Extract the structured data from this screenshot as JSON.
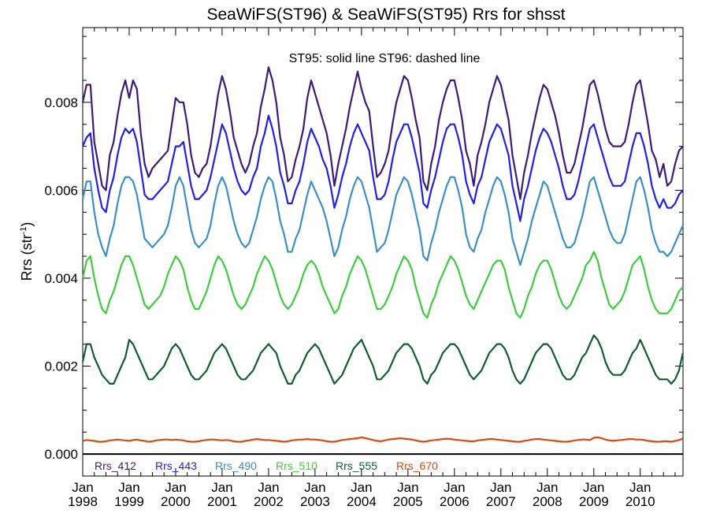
{
  "chart_data": {
    "type": "line",
    "title": "SeaWiFS(ST96) & SeaWiFS(ST95)  Rrs for shsst",
    "ylabel": "Rrs (str",
    "ylabel_sup": "-1",
    "ylabel_close": ")",
    "annotation": "ST95: solid line   ST96: dashed line",
    "ylim": [
      -0.0005,
      0.0097
    ],
    "xlim": [
      1998.0,
      2010.92
    ],
    "y_ticks": [
      0.0,
      0.002,
      0.004,
      0.006,
      0.008
    ],
    "y_tick_labels": [
      "0.000",
      "0.002",
      "0.004",
      "0.006",
      "0.008"
    ],
    "x_ticks": [
      {
        "month": "Jan",
        "year": "1998",
        "x": 1998
      },
      {
        "month": "Jan",
        "year": "1999",
        "x": 1999
      },
      {
        "month": "Jan",
        "year": "2000",
        "x": 2000
      },
      {
        "month": "Jan",
        "year": "2001",
        "x": 2001
      },
      {
        "month": "Jan",
        "year": "2002",
        "x": 2002
      },
      {
        "month": "Jan",
        "year": "2003",
        "x": 2003
      },
      {
        "month": "Jan",
        "year": "2004",
        "x": 2004
      },
      {
        "month": "Jan",
        "year": "2005",
        "x": 2005
      },
      {
        "month": "Jan",
        "year": "2006",
        "x": 2006
      },
      {
        "month": "Jan",
        "year": "2007",
        "x": 2007
      },
      {
        "month": "Jan",
        "year": "2008",
        "x": 2008
      },
      {
        "month": "Jan",
        "year": "2009",
        "x": 2009
      },
      {
        "month": "Jan",
        "year": "2010",
        "x": 2010
      }
    ],
    "x_minor_per_major": 4,
    "y_minor_per_major": 4,
    "grid": false,
    "legend_position": "bottom-left",
    "time_start": "1998-01",
    "time_step": "monthly",
    "series": [
      {
        "name": "Rrs_412",
        "color": "#3c1a78",
        "values": [
          0.008,
          0.0084,
          0.0084,
          0.0071,
          0.0066,
          0.0061,
          0.006,
          0.0068,
          0.0071,
          0.0077,
          0.0082,
          0.0085,
          0.0081,
          0.0085,
          0.0083,
          0.0073,
          0.0066,
          0.0063,
          0.0065,
          0.0066,
          0.0067,
          0.0068,
          0.0069,
          0.0075,
          0.0081,
          0.008,
          0.008,
          0.0075,
          0.0068,
          0.0064,
          0.0063,
          0.0065,
          0.0066,
          0.007,
          0.0076,
          0.0082,
          0.0086,
          0.0083,
          0.0078,
          0.0072,
          0.0069,
          0.0066,
          0.0064,
          0.0066,
          0.007,
          0.0073,
          0.0079,
          0.0083,
          0.0088,
          0.0085,
          0.008,
          0.0072,
          0.0068,
          0.0062,
          0.0063,
          0.0067,
          0.007,
          0.0074,
          0.0081,
          0.0085,
          0.0082,
          0.0079,
          0.0076,
          0.0073,
          0.0068,
          0.0061,
          0.0066,
          0.007,
          0.0074,
          0.0079,
          0.0083,
          0.0087,
          0.0083,
          0.008,
          0.0078,
          0.007,
          0.0063,
          0.0064,
          0.0066,
          0.0069,
          0.0075,
          0.008,
          0.0083,
          0.0086,
          0.0085,
          0.0081,
          0.0076,
          0.0072,
          0.0062,
          0.006,
          0.0066,
          0.007,
          0.0076,
          0.008,
          0.0083,
          0.0085,
          0.0085,
          0.0081,
          0.0076,
          0.0069,
          0.0066,
          0.0061,
          0.0068,
          0.0071,
          0.0075,
          0.008,
          0.0083,
          0.0086,
          0.0084,
          0.008,
          0.0076,
          0.0068,
          0.0063,
          0.0058,
          0.0064,
          0.0068,
          0.0073,
          0.0077,
          0.0081,
          0.0084,
          0.0083,
          0.008,
          0.0077,
          0.0073,
          0.0068,
          0.0064,
          0.0064,
          0.0066,
          0.007,
          0.0074,
          0.0079,
          0.0084,
          0.0085,
          0.0082,
          0.0078,
          0.0074,
          0.0071,
          0.007,
          0.007,
          0.007,
          0.0071,
          0.0075,
          0.008,
          0.0084,
          0.0085,
          0.008,
          0.0075,
          0.0069,
          0.0067,
          0.0063,
          0.0066,
          0.0061,
          0.0062,
          0.0066,
          0.0069,
          0.007
        ]
      },
      {
        "name": "Rrs_443",
        "color": "#1f1fe6",
        "values": [
          0.007,
          0.0072,
          0.0073,
          0.0065,
          0.006,
          0.0056,
          0.0055,
          0.006,
          0.0063,
          0.0068,
          0.0072,
          0.0074,
          0.0073,
          0.0074,
          0.0071,
          0.0065,
          0.0059,
          0.0058,
          0.0058,
          0.0059,
          0.006,
          0.0061,
          0.0062,
          0.0066,
          0.007,
          0.007,
          0.0071,
          0.0066,
          0.0061,
          0.0058,
          0.0058,
          0.0059,
          0.006,
          0.0063,
          0.0067,
          0.0071,
          0.0075,
          0.0073,
          0.0069,
          0.0065,
          0.0062,
          0.006,
          0.0059,
          0.006,
          0.0063,
          0.0065,
          0.007,
          0.0073,
          0.0077,
          0.0074,
          0.007,
          0.0064,
          0.0061,
          0.0057,
          0.0057,
          0.006,
          0.0062,
          0.0066,
          0.0071,
          0.0074,
          0.0072,
          0.007,
          0.0067,
          0.0065,
          0.0061,
          0.0056,
          0.0059,
          0.0063,
          0.0066,
          0.007,
          0.0073,
          0.0075,
          0.0073,
          0.0071,
          0.0069,
          0.0063,
          0.0058,
          0.0058,
          0.0059,
          0.0062,
          0.0067,
          0.0071,
          0.0073,
          0.0075,
          0.0075,
          0.0072,
          0.0068,
          0.0064,
          0.0057,
          0.0056,
          0.006,
          0.0063,
          0.0067,
          0.0071,
          0.0074,
          0.0075,
          0.0075,
          0.0072,
          0.0068,
          0.0062,
          0.0059,
          0.0057,
          0.0061,
          0.0063,
          0.0067,
          0.0071,
          0.0073,
          0.0075,
          0.0074,
          0.0071,
          0.0068,
          0.0061,
          0.0057,
          0.0053,
          0.0058,
          0.0061,
          0.0065,
          0.0069,
          0.0072,
          0.0074,
          0.0073,
          0.0071,
          0.0068,
          0.0065,
          0.0061,
          0.0058,
          0.0058,
          0.0059,
          0.0062,
          0.0066,
          0.007,
          0.0074,
          0.0075,
          0.0072,
          0.0069,
          0.0066,
          0.0063,
          0.0061,
          0.0061,
          0.0061,
          0.0062,
          0.0066,
          0.007,
          0.0073,
          0.0073,
          0.007,
          0.0066,
          0.0061,
          0.0058,
          0.0056,
          0.0058,
          0.0056,
          0.0056,
          0.0057,
          0.0059,
          0.006
        ]
      },
      {
        "name": "Rrs_490",
        "color": "#3a8fc4",
        "values": [
          0.0058,
          0.0062,
          0.0062,
          0.0055,
          0.005,
          0.0047,
          0.0045,
          0.0049,
          0.0052,
          0.0057,
          0.0061,
          0.0063,
          0.0063,
          0.0062,
          0.0059,
          0.0054,
          0.0049,
          0.0048,
          0.0047,
          0.0048,
          0.0049,
          0.005,
          0.0052,
          0.0056,
          0.0061,
          0.0063,
          0.0061,
          0.0056,
          0.0051,
          0.0048,
          0.0047,
          0.0048,
          0.0049,
          0.0052,
          0.0057,
          0.0061,
          0.0063,
          0.0061,
          0.0057,
          0.0053,
          0.005,
          0.0048,
          0.0047,
          0.0048,
          0.0051,
          0.0054,
          0.0058,
          0.0061,
          0.0063,
          0.0062,
          0.0058,
          0.0053,
          0.005,
          0.0046,
          0.0046,
          0.0049,
          0.0051,
          0.0055,
          0.0059,
          0.0062,
          0.006,
          0.0058,
          0.0056,
          0.0053,
          0.0049,
          0.0045,
          0.0047,
          0.0051,
          0.0054,
          0.0058,
          0.0061,
          0.0063,
          0.0062,
          0.0059,
          0.0056,
          0.0051,
          0.0046,
          0.0047,
          0.0048,
          0.0051,
          0.0055,
          0.0059,
          0.0061,
          0.0063,
          0.0062,
          0.0059,
          0.0055,
          0.0051,
          0.0045,
          0.0044,
          0.0048,
          0.0051,
          0.0055,
          0.0058,
          0.0061,
          0.0063,
          0.0063,
          0.006,
          0.0056,
          0.005,
          0.0047,
          0.0046,
          0.0049,
          0.0051,
          0.0055,
          0.0058,
          0.0061,
          0.0063,
          0.0062,
          0.0059,
          0.0055,
          0.0049,
          0.0046,
          0.0043,
          0.0046,
          0.0049,
          0.0053,
          0.0056,
          0.0059,
          0.0062,
          0.0061,
          0.0058,
          0.0055,
          0.0052,
          0.0049,
          0.0047,
          0.0047,
          0.0048,
          0.0051,
          0.0054,
          0.0058,
          0.0062,
          0.0063,
          0.006,
          0.0057,
          0.0054,
          0.0051,
          0.0049,
          0.0048,
          0.0048,
          0.005,
          0.0054,
          0.0058,
          0.0062,
          0.0063,
          0.006,
          0.0056,
          0.0051,
          0.0048,
          0.0046,
          0.0046,
          0.0045,
          0.0046,
          0.0048,
          0.005,
          0.0052
        ]
      },
      {
        "name": "Rrs_510",
        "color": "#3ccc3c",
        "values": [
          0.004,
          0.0044,
          0.0045,
          0.004,
          0.0036,
          0.0033,
          0.0032,
          0.0035,
          0.0037,
          0.004,
          0.0043,
          0.0045,
          0.0045,
          0.0043,
          0.004,
          0.0037,
          0.0034,
          0.0033,
          0.0034,
          0.0035,
          0.0036,
          0.0038,
          0.0041,
          0.0043,
          0.0045,
          0.0044,
          0.0042,
          0.0038,
          0.0035,
          0.0033,
          0.0033,
          0.0035,
          0.0037,
          0.004,
          0.0043,
          0.0045,
          0.0044,
          0.0042,
          0.0039,
          0.0036,
          0.0034,
          0.0033,
          0.0034,
          0.0036,
          0.0038,
          0.0041,
          0.0043,
          0.0045,
          0.0044,
          0.0042,
          0.0039,
          0.0036,
          0.0034,
          0.0033,
          0.0034,
          0.0036,
          0.0038,
          0.0041,
          0.0043,
          0.0044,
          0.0043,
          0.0041,
          0.0038,
          0.0036,
          0.0034,
          0.0032,
          0.0033,
          0.0036,
          0.0038,
          0.0041,
          0.0043,
          0.0045,
          0.0044,
          0.0042,
          0.0039,
          0.0036,
          0.0033,
          0.0033,
          0.0034,
          0.0036,
          0.0038,
          0.0041,
          0.0043,
          0.0045,
          0.0044,
          0.0042,
          0.0038,
          0.0035,
          0.0032,
          0.0031,
          0.0034,
          0.0036,
          0.0039,
          0.0041,
          0.0043,
          0.0045,
          0.0044,
          0.0042,
          0.0039,
          0.0036,
          0.0034,
          0.0033,
          0.0035,
          0.0037,
          0.0039,
          0.0041,
          0.0043,
          0.0044,
          0.0044,
          0.0042,
          0.0038,
          0.0035,
          0.0032,
          0.0031,
          0.0033,
          0.0036,
          0.0038,
          0.0041,
          0.0043,
          0.0044,
          0.0044,
          0.0042,
          0.0039,
          0.0036,
          0.0034,
          0.0033,
          0.0034,
          0.0036,
          0.0038,
          0.004,
          0.0043,
          0.0044,
          0.0046,
          0.0044,
          0.004,
          0.0037,
          0.0034,
          0.0033,
          0.0034,
          0.0035,
          0.0037,
          0.004,
          0.0043,
          0.0044,
          0.0045,
          0.0042,
          0.0038,
          0.0035,
          0.0033,
          0.0032,
          0.0032,
          0.0032,
          0.0033,
          0.0035,
          0.0037,
          0.0038
        ]
      },
      {
        "name": "Rrs_555",
        "color": "#0f5e2e",
        "values": [
          0.0021,
          0.0025,
          0.0025,
          0.0022,
          0.002,
          0.0018,
          0.0017,
          0.0016,
          0.0016,
          0.0018,
          0.002,
          0.0022,
          0.0026,
          0.0025,
          0.0023,
          0.0021,
          0.0019,
          0.0017,
          0.0017,
          0.0018,
          0.0019,
          0.002,
          0.0022,
          0.0024,
          0.0025,
          0.0024,
          0.0022,
          0.002,
          0.0018,
          0.0017,
          0.0017,
          0.0018,
          0.0019,
          0.0021,
          0.0023,
          0.0024,
          0.0025,
          0.0024,
          0.0022,
          0.002,
          0.0018,
          0.0017,
          0.0017,
          0.0018,
          0.0019,
          0.0021,
          0.0023,
          0.0024,
          0.0025,
          0.0024,
          0.0023,
          0.002,
          0.0018,
          0.0016,
          0.0016,
          0.0018,
          0.0019,
          0.0021,
          0.0023,
          0.0024,
          0.0025,
          0.0024,
          0.0022,
          0.002,
          0.0018,
          0.0016,
          0.0017,
          0.0018,
          0.002,
          0.0022,
          0.0024,
          0.0025,
          0.0026,
          0.0024,
          0.0022,
          0.002,
          0.0017,
          0.0017,
          0.0018,
          0.0019,
          0.0021,
          0.0023,
          0.0024,
          0.0025,
          0.0025,
          0.0024,
          0.0022,
          0.002,
          0.0017,
          0.0016,
          0.0018,
          0.0019,
          0.0021,
          0.0023,
          0.0024,
          0.0025,
          0.0025,
          0.0024,
          0.0022,
          0.002,
          0.0018,
          0.0017,
          0.0018,
          0.0019,
          0.0021,
          0.0023,
          0.0024,
          0.0025,
          0.0025,
          0.0024,
          0.0022,
          0.0019,
          0.0017,
          0.0016,
          0.0017,
          0.0019,
          0.0021,
          0.0023,
          0.0024,
          0.0025,
          0.0025,
          0.0024,
          0.0022,
          0.002,
          0.0018,
          0.0017,
          0.0017,
          0.0018,
          0.002,
          0.0022,
          0.0023,
          0.0025,
          0.0027,
          0.0026,
          0.0024,
          0.0021,
          0.0019,
          0.0018,
          0.0018,
          0.0018,
          0.0019,
          0.0021,
          0.0023,
          0.0024,
          0.0026,
          0.0024,
          0.0022,
          0.002,
          0.0018,
          0.0017,
          0.0017,
          0.0017,
          0.0016,
          0.0017,
          0.0019,
          0.0023
        ]
      },
      {
        "name": "Rrs_670",
        "color": "#d84a0e",
        "values": [
          0.0003,
          0.00032,
          0.00031,
          0.0003,
          0.00028,
          0.00028,
          0.00029,
          0.00031,
          0.00032,
          0.00033,
          0.00032,
          0.00031,
          0.0003,
          0.00032,
          0.00033,
          0.00031,
          0.0003,
          0.00028,
          0.00029,
          0.00031,
          0.00032,
          0.00033,
          0.00033,
          0.00032,
          0.00033,
          0.00032,
          0.00031,
          0.00029,
          0.00028,
          0.00028,
          0.00029,
          0.00031,
          0.00032,
          0.00033,
          0.00033,
          0.00032,
          0.00031,
          0.00032,
          0.00031,
          0.00029,
          0.00028,
          0.00028,
          0.0003,
          0.00031,
          0.00033,
          0.00034,
          0.00033,
          0.00032,
          0.00032,
          0.00031,
          0.0003,
          0.00029,
          0.00028,
          0.00029,
          0.00031,
          0.00032,
          0.00033,
          0.00033,
          0.00034,
          0.00033,
          0.00033,
          0.00032,
          0.00031,
          0.00029,
          0.00028,
          0.00028,
          0.0003,
          0.00032,
          0.00033,
          0.00034,
          0.00035,
          0.00036,
          0.00038,
          0.00036,
          0.00034,
          0.00032,
          0.0003,
          0.00029,
          0.00031,
          0.00033,
          0.00034,
          0.00035,
          0.00036,
          0.00035,
          0.00034,
          0.00033,
          0.00031,
          0.00029,
          0.00028,
          0.00029,
          0.00031,
          0.00032,
          0.00033,
          0.00034,
          0.00035,
          0.00034,
          0.00033,
          0.00032,
          0.00031,
          0.0003,
          0.00029,
          0.00029,
          0.00031,
          0.00032,
          0.00033,
          0.00034,
          0.00034,
          0.00033,
          0.00032,
          0.00031,
          0.0003,
          0.00029,
          0.00028,
          0.00028,
          0.0003,
          0.00031,
          0.00033,
          0.00034,
          0.00034,
          0.00033,
          0.00032,
          0.00031,
          0.0003,
          0.00029,
          0.00028,
          0.00028,
          0.00029,
          0.00031,
          0.00032,
          0.00033,
          0.00033,
          0.00032,
          0.00037,
          0.00038,
          0.00036,
          0.00033,
          0.00031,
          0.0003,
          0.00031,
          0.00032,
          0.00033,
          0.00034,
          0.00034,
          0.00033,
          0.00033,
          0.00032,
          0.0003,
          0.00029,
          0.00028,
          0.00028,
          0.00029,
          0.00029,
          0.00028,
          0.0003,
          0.00032,
          0.00035
        ]
      }
    ]
  }
}
